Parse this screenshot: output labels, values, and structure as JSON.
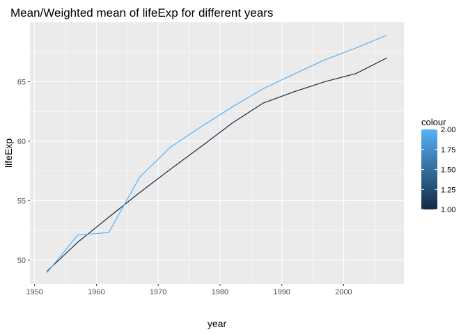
{
  "chart_data": {
    "type": "line",
    "title": "Mean/Weighted mean of lifeExp for different years",
    "xlabel": "year",
    "ylabel": "lifeExp",
    "xlim": [
      1949.25,
      2009.75
    ],
    "ylim": [
      48.0,
      70.0
    ],
    "x_ticks": [
      1950,
      1960,
      1970,
      1980,
      1990,
      2000
    ],
    "y_ticks": [
      50,
      55,
      60,
      65
    ],
    "grid": true,
    "legend": {
      "title": "colour",
      "position": "right",
      "type": "colorbar",
      "range": [
        1.0,
        2.0
      ],
      "low_color": "#132B43",
      "high_color": "#56B1F7",
      "tick_values": [
        1.0,
        1.25,
        1.5,
        1.75,
        2.0
      ],
      "tick_labels": [
        "1.00",
        "1.25",
        "1.50",
        "1.75",
        "2.00"
      ]
    },
    "series": [
      {
        "colour_value": 1,
        "color": "#132B43",
        "x": [
          1952,
          1957,
          1962,
          1967,
          1972,
          1977,
          1982,
          1987,
          1992,
          1997,
          2002,
          2007
        ],
        "values": [
          49.06,
          51.51,
          53.61,
          55.68,
          57.65,
          59.57,
          61.53,
          63.21,
          64.16,
          65.01,
          65.69,
          67.01
        ]
      },
      {
        "colour_value": 2,
        "color": "#56B1F7",
        "x": [
          1952,
          1957,
          1962,
          1967,
          1972,
          1977,
          1982,
          1987,
          1992,
          1997,
          2002,
          2007
        ],
        "values": [
          48.94,
          52.12,
          52.32,
          56.98,
          59.51,
          61.24,
          62.88,
          64.42,
          65.65,
          66.85,
          67.84,
          68.92
        ]
      }
    ]
  }
}
